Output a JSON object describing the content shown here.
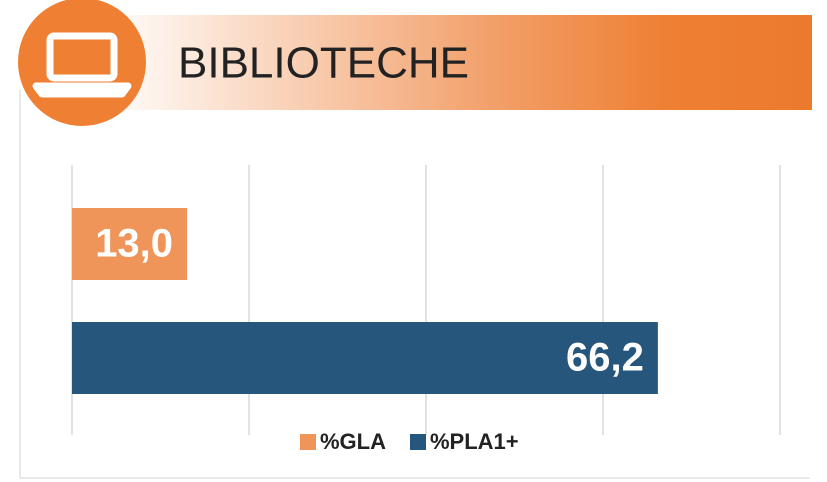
{
  "chart_data": {
    "type": "bar",
    "orientation": "horizontal",
    "title": "BIBLIOTECHE",
    "series": [
      {
        "name": "%GLA",
        "color": "#f0955a",
        "values": [
          13.0
        ],
        "value_labels": [
          "13,0"
        ]
      },
      {
        "name": "%PLA1+",
        "color": "#26567c",
        "values": [
          66.2
        ],
        "value_labels": [
          "66,2"
        ]
      }
    ],
    "xlim": [
      0,
      80
    ],
    "xticks": [
      0,
      20,
      40,
      60,
      80
    ],
    "grid": true,
    "legend": "bottom"
  }
}
